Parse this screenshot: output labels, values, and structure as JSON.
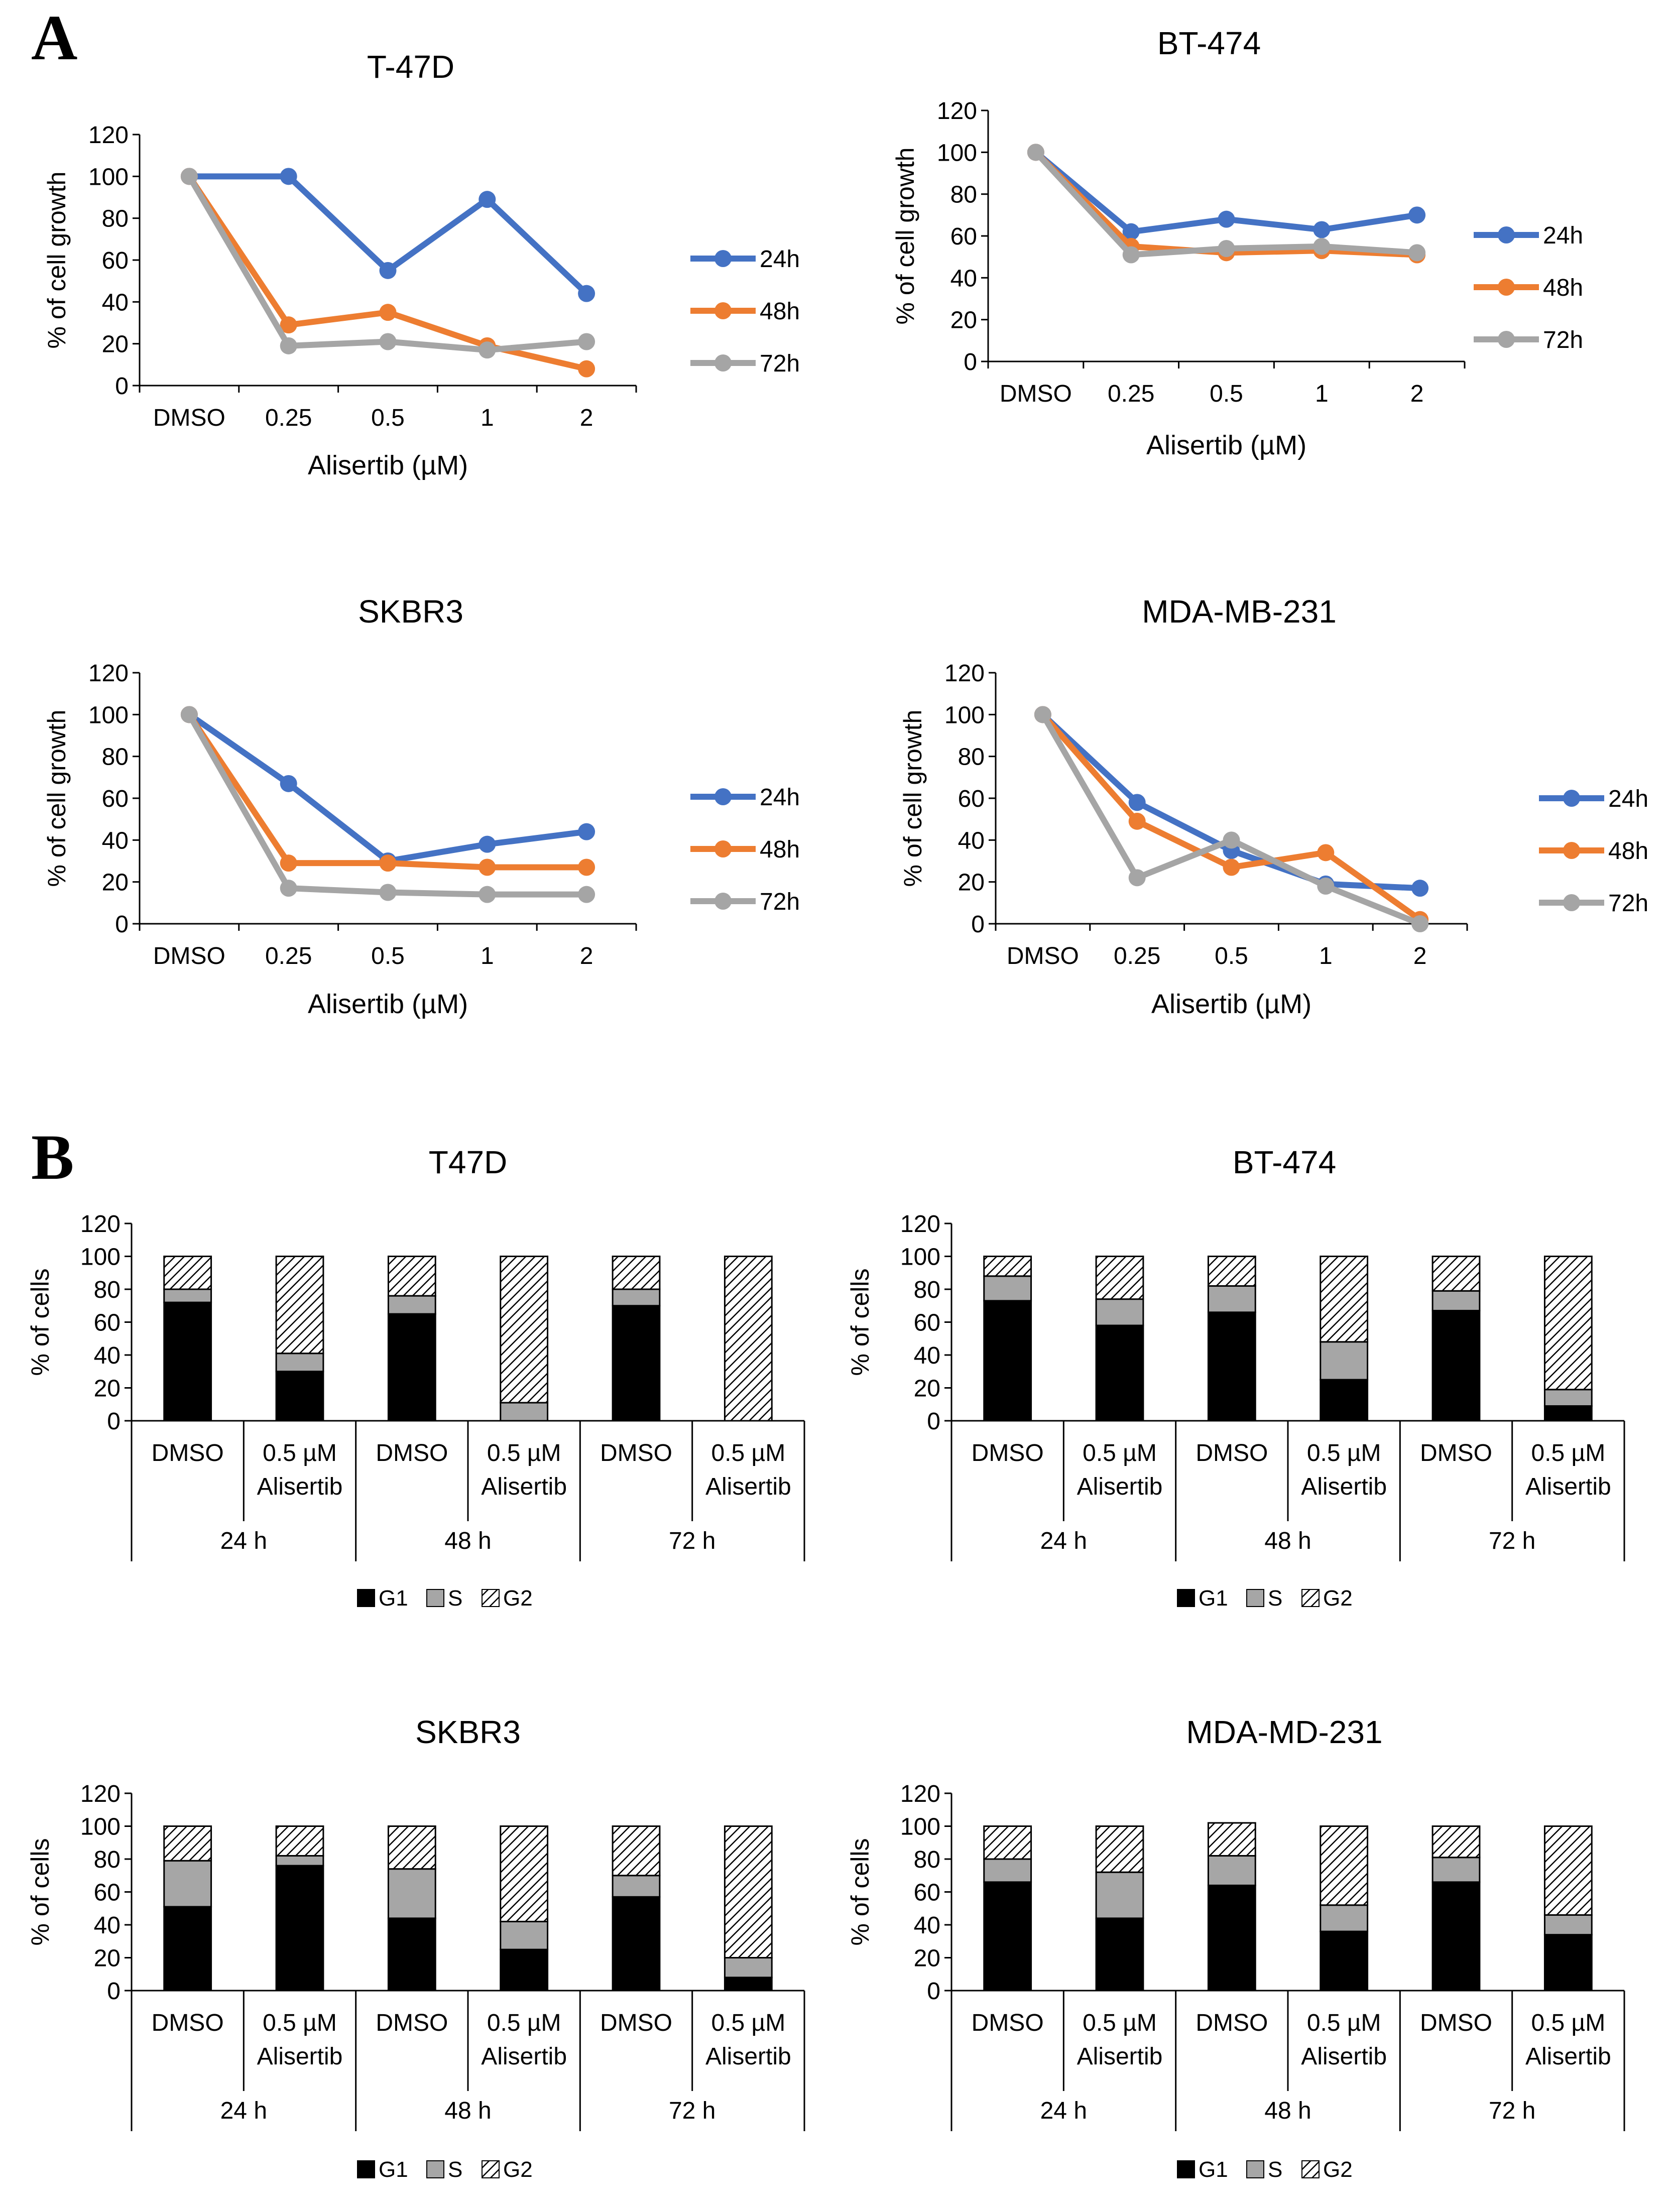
{
  "panel_labels": [
    "A",
    "B"
  ],
  "colors": {
    "24h": "#4472C4",
    "48h": "#ED7D31",
    "72h": "#A5A5A5",
    "G1": "#000000",
    "S": "#A6A6A6",
    "G2_line": "#000000"
  },
  "chart_data": [
    {
      "type": "line",
      "title": "T-47D",
      "xlabel": "Alisertib (µM)",
      "ylabel": "% of cell growth",
      "categories": [
        "DMSO",
        "0.25",
        "0.5",
        "1",
        "2"
      ],
      "ylim": [
        0,
        120
      ],
      "yticks": [
        0,
        20,
        40,
        60,
        80,
        100,
        120
      ],
      "series": [
        {
          "name": "24h",
          "values": [
            100,
            100,
            55,
            89,
            44
          ]
        },
        {
          "name": "48h",
          "values": [
            100,
            29,
            35,
            19,
            8
          ]
        },
        {
          "name": "72h",
          "values": [
            100,
            19,
            21,
            17,
            21
          ]
        }
      ]
    },
    {
      "type": "line",
      "title": "BT-474",
      "xlabel": "Alisertib (µM)",
      "ylabel": "% of cell growth",
      "categories": [
        "DMSO",
        "0.25",
        "0.5",
        "1",
        "2"
      ],
      "ylim": [
        0,
        120
      ],
      "yticks": [
        0,
        20,
        40,
        60,
        80,
        100,
        120
      ],
      "series": [
        {
          "name": "24h",
          "values": [
            100,
            62,
            68,
            63,
            70
          ]
        },
        {
          "name": "48h",
          "values": [
            100,
            55,
            52,
            53,
            51
          ]
        },
        {
          "name": "72h",
          "values": [
            100,
            51,
            54,
            55,
            52
          ]
        }
      ]
    },
    {
      "type": "line",
      "title": "SKBR3",
      "xlabel": "Alisertib (µM)",
      "ylabel": "% of cell growth",
      "categories": [
        "DMSO",
        "0.25",
        "0.5",
        "1",
        "2"
      ],
      "ylim": [
        0,
        120
      ],
      "yticks": [
        0,
        20,
        40,
        60,
        80,
        100,
        120
      ],
      "series": [
        {
          "name": "24h",
          "values": [
            100,
            67,
            30,
            38,
            44
          ]
        },
        {
          "name": "48h",
          "values": [
            100,
            29,
            29,
            27,
            27
          ]
        },
        {
          "name": "72h",
          "values": [
            100,
            17,
            15,
            14,
            14
          ]
        }
      ]
    },
    {
      "type": "line",
      "title": "MDA-MB-231",
      "xlabel": "Alisertib (µM)",
      "ylabel": "% of cell growth",
      "categories": [
        "DMSO",
        "0.25",
        "0.5",
        "1",
        "2"
      ],
      "ylim": [
        0,
        120
      ],
      "yticks": [
        0,
        20,
        40,
        60,
        80,
        100,
        120
      ],
      "series": [
        {
          "name": "24h",
          "values": [
            100,
            58,
            35,
            19,
            17
          ]
        },
        {
          "name": "48h",
          "values": [
            100,
            49,
            27,
            34,
            2
          ]
        },
        {
          "name": "72h",
          "values": [
            100,
            22,
            40,
            18,
            0
          ]
        }
      ]
    },
    {
      "type": "bar",
      "stacked": true,
      "title": "T47D",
      "ylabel": "% of cells",
      "ylim": [
        0,
        120
      ],
      "yticks": [
        0,
        20,
        40,
        60,
        80,
        100,
        120
      ],
      "categories": [
        {
          "label": [
            "DMSO"
          ],
          "group": "24 h"
        },
        {
          "label": [
            "0.5 µM",
            "Alisertib"
          ],
          "group": "24 h"
        },
        {
          "label": [
            "DMSO"
          ],
          "group": "48 h"
        },
        {
          "label": [
            "0.5 µM",
            "Alisertib"
          ],
          "group": "48 h"
        },
        {
          "label": [
            "DMSO"
          ],
          "group": "72 h"
        },
        {
          "label": [
            "0.5 µM",
            "Alisertib"
          ],
          "group": "72 h"
        }
      ],
      "groups": [
        "24 h",
        "48 h",
        "72 h"
      ],
      "series": [
        {
          "name": "G1",
          "values": [
            72,
            30,
            65,
            0,
            70,
            0
          ]
        },
        {
          "name": "S",
          "values": [
            8,
            11,
            11,
            11,
            10,
            0
          ]
        },
        {
          "name": "G2",
          "values": [
            20,
            59,
            24,
            89,
            20,
            100
          ]
        }
      ]
    },
    {
      "type": "bar",
      "stacked": true,
      "title": "BT-474",
      "ylabel": "% of cells",
      "ylim": [
        0,
        120
      ],
      "yticks": [
        0,
        20,
        40,
        60,
        80,
        100,
        120
      ],
      "categories": [
        {
          "label": [
            "DMSO"
          ],
          "group": "24 h"
        },
        {
          "label": [
            "0.5 µM",
            "Alisertib"
          ],
          "group": "24 h"
        },
        {
          "label": [
            "DMSO"
          ],
          "group": "48 h"
        },
        {
          "label": [
            "0.5 µM",
            "Alisertib"
          ],
          "group": "48 h"
        },
        {
          "label": [
            "DMSO"
          ],
          "group": "72 h"
        },
        {
          "label": [
            "0.5 µM",
            "Alisertib"
          ],
          "group": "72 h"
        }
      ],
      "groups": [
        "24 h",
        "48 h",
        "72 h"
      ],
      "series": [
        {
          "name": "G1",
          "values": [
            73,
            58,
            66,
            25,
            67,
            9
          ]
        },
        {
          "name": "S",
          "values": [
            15,
            16,
            16,
            23,
            12,
            10
          ]
        },
        {
          "name": "G2",
          "values": [
            12,
            26,
            18,
            52,
            21,
            81
          ]
        }
      ]
    },
    {
      "type": "bar",
      "stacked": true,
      "title": "SKBR3",
      "ylabel": "% of cells",
      "ylim": [
        0,
        120
      ],
      "yticks": [
        0,
        20,
        40,
        60,
        80,
        100,
        120
      ],
      "categories": [
        {
          "label": [
            "DMSO"
          ],
          "group": "24 h"
        },
        {
          "label": [
            "0.5 µM",
            "Alisertib"
          ],
          "group": "24 h"
        },
        {
          "label": [
            "DMSO"
          ],
          "group": "48 h"
        },
        {
          "label": [
            "0.5 µM",
            "Alisertib"
          ],
          "group": "48 h"
        },
        {
          "label": [
            "DMSO"
          ],
          "group": "72 h"
        },
        {
          "label": [
            "0.5 µM",
            "Alisertib"
          ],
          "group": "72 h"
        }
      ],
      "groups": [
        "24 h",
        "48 h",
        "72 h"
      ],
      "series": [
        {
          "name": "G1",
          "values": [
            51,
            76,
            44,
            25,
            57,
            8
          ]
        },
        {
          "name": "S",
          "values": [
            28,
            6,
            30,
            17,
            13,
            12
          ]
        },
        {
          "name": "G2",
          "values": [
            21,
            18,
            26,
            58,
            30,
            80
          ]
        }
      ]
    },
    {
      "type": "bar",
      "stacked": true,
      "title": "MDA-MD-231",
      "ylabel": "% of cells",
      "ylim": [
        0,
        120
      ],
      "yticks": [
        0,
        20,
        40,
        60,
        80,
        100,
        120
      ],
      "categories": [
        {
          "label": [
            "DMSO"
          ],
          "group": "24 h"
        },
        {
          "label": [
            "0.5 µM",
            "Alisertib"
          ],
          "group": "24 h"
        },
        {
          "label": [
            "DMSO"
          ],
          "group": "48 h"
        },
        {
          "label": [
            "0.5 µM",
            "Alisertib"
          ],
          "group": "48 h"
        },
        {
          "label": [
            "DMSO"
          ],
          "group": "72 h"
        },
        {
          "label": [
            "0.5 µM",
            "Alisertib"
          ],
          "group": "72 h"
        }
      ],
      "groups": [
        "24 h",
        "48 h",
        "72 h"
      ],
      "series": [
        {
          "name": "G1",
          "values": [
            66,
            44,
            64,
            36,
            66,
            34
          ]
        },
        {
          "name": "S",
          "values": [
            14,
            28,
            18,
            16,
            15,
            12
          ]
        },
        {
          "name": "G2",
          "values": [
            20,
            28,
            20,
            48,
            19,
            54
          ]
        }
      ]
    }
  ]
}
